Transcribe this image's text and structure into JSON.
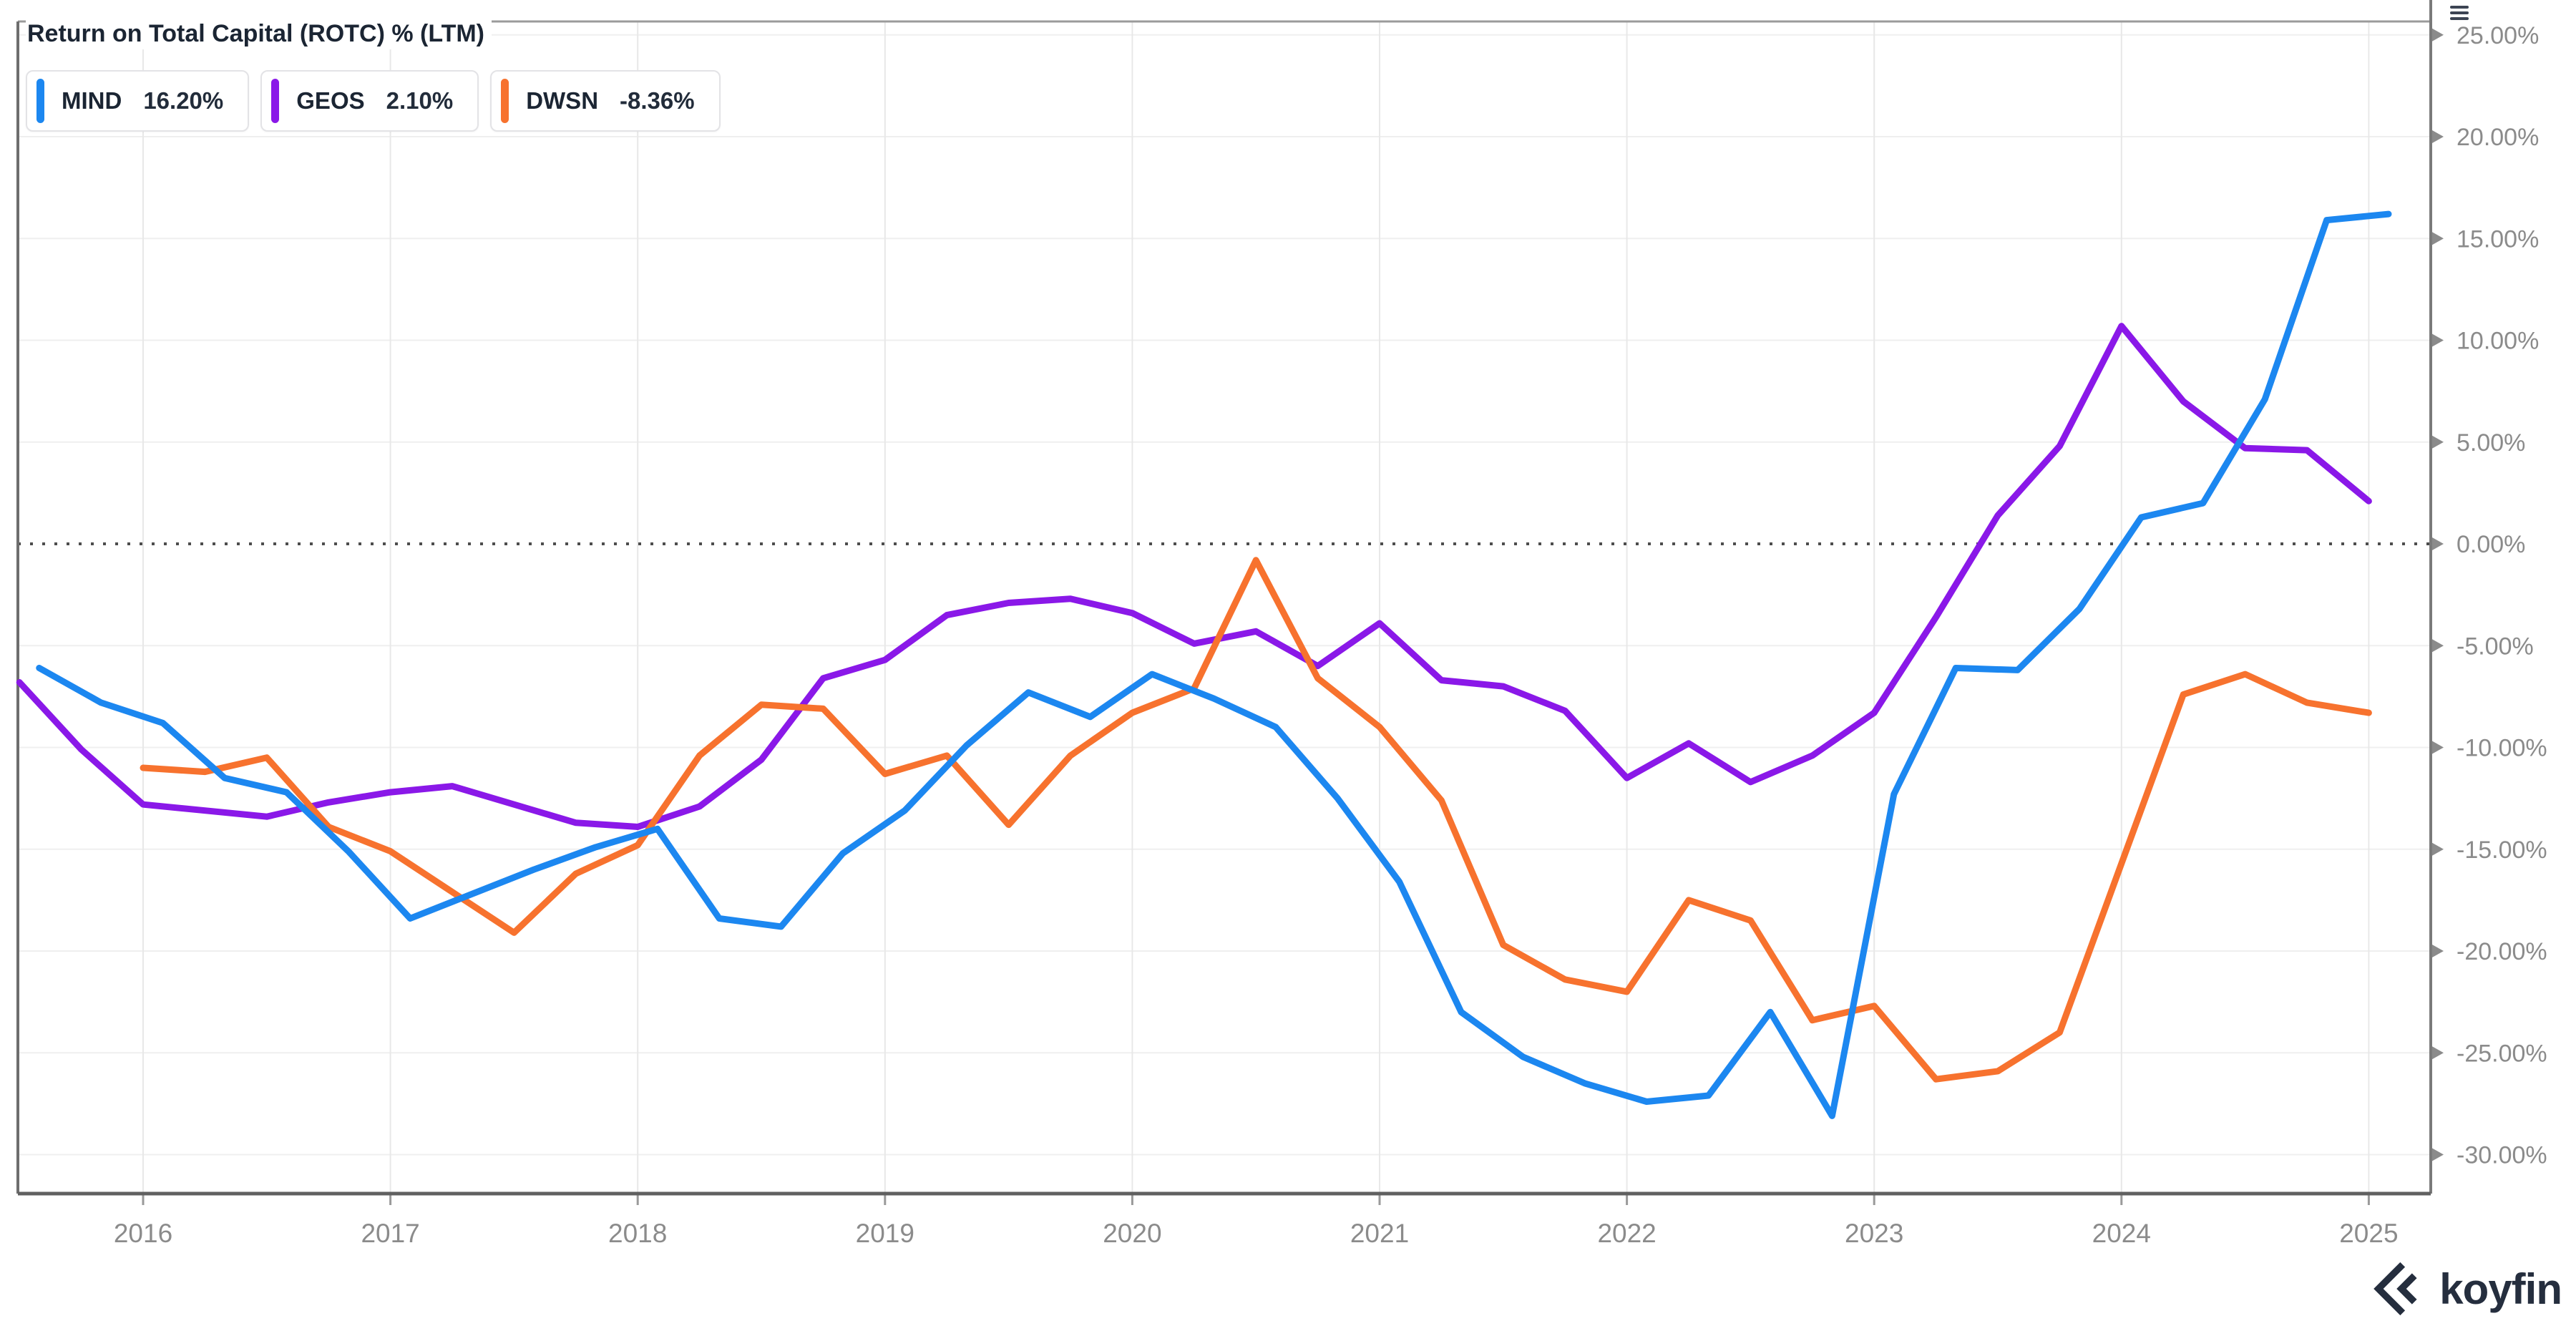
{
  "header": {
    "title": "Return on Total Capital (ROTC) % (LTM)"
  },
  "legend": {
    "items": [
      {
        "ticker": "MIND",
        "value": "16.20%",
        "color": "#1C87F0"
      },
      {
        "ticker": "GEOS",
        "value": "2.10%",
        "color": "#8A18E8"
      },
      {
        "ticker": "DWSN",
        "value": "-8.36%",
        "color": "#F7722E"
      }
    ]
  },
  "watermark": {
    "brand": "koyfin"
  },
  "chart_data": {
    "type": "line",
    "title": "Return on Total Capital (ROTC) % (LTM)",
    "xlabel": "",
    "ylabel": "",
    "xlim": [
      2015.45,
      2025.27
    ],
    "ylim": [
      -31.9,
      25.7
    ],
    "grid": true,
    "legend_position": "top-left",
    "y_axis_side": "right",
    "zero_line": {
      "value": 0,
      "style": "dotted",
      "color": "#4d4d4d"
    },
    "x_ticks": [
      {
        "label": "2016",
        "x": 2016
      },
      {
        "label": "2017",
        "x": 2017
      },
      {
        "label": "2018",
        "x": 2018
      },
      {
        "label": "2019",
        "x": 2019
      },
      {
        "label": "2020",
        "x": 2020
      },
      {
        "label": "2021",
        "x": 2021
      },
      {
        "label": "2022",
        "x": 2022
      },
      {
        "label": "2023",
        "x": 2023
      },
      {
        "label": "2024",
        "x": 2024
      },
      {
        "label": "2025",
        "x": 2025
      }
    ],
    "y_ticks": [
      {
        "label": "25.00%",
        "y": 25
      },
      {
        "label": "20.00%",
        "y": 20
      },
      {
        "label": "15.00%",
        "y": 15
      },
      {
        "label": "10.00%",
        "y": 10
      },
      {
        "label": "5.00%",
        "y": 5
      },
      {
        "label": "0.00%",
        "y": 0
      },
      {
        "label": "-5.00%",
        "y": -5
      },
      {
        "label": "-10.00%",
        "y": -10
      },
      {
        "label": "-15.00%",
        "y": -15
      },
      {
        "label": "-20.00%",
        "y": -20
      },
      {
        "label": "-25.00%",
        "y": -25
      },
      {
        "label": "-30.00%",
        "y": -30
      }
    ],
    "series": [
      {
        "name": "GEOS",
        "color": "#8A18E8",
        "current_value_pct": 2.1,
        "points": [
          [
            2015.5,
            -6.8
          ],
          [
            2015.75,
            -10.1
          ],
          [
            2016.0,
            -12.8
          ],
          [
            2016.25,
            -13.1
          ],
          [
            2016.5,
            -13.4
          ],
          [
            2016.75,
            -12.7
          ],
          [
            2017.0,
            -12.2
          ],
          [
            2017.25,
            -11.9
          ],
          [
            2017.5,
            -12.8
          ],
          [
            2017.75,
            -13.7
          ],
          [
            2018.0,
            -13.9
          ],
          [
            2018.25,
            -12.9
          ],
          [
            2018.5,
            -10.6
          ],
          [
            2018.75,
            -6.6
          ],
          [
            2019.0,
            -5.7
          ],
          [
            2019.25,
            -3.5
          ],
          [
            2019.5,
            -2.9
          ],
          [
            2019.75,
            -2.7
          ],
          [
            2020.0,
            -3.4
          ],
          [
            2020.25,
            -4.9
          ],
          [
            2020.5,
            -4.3
          ],
          [
            2020.75,
            -6.0
          ],
          [
            2021.0,
            -3.9
          ],
          [
            2021.25,
            -6.7
          ],
          [
            2021.5,
            -7.0
          ],
          [
            2021.75,
            -8.2
          ],
          [
            2022.0,
            -11.5
          ],
          [
            2022.25,
            -9.8
          ],
          [
            2022.5,
            -11.7
          ],
          [
            2022.75,
            -10.4
          ],
          [
            2023.0,
            -8.3
          ],
          [
            2023.25,
            -3.6
          ],
          [
            2023.5,
            1.4
          ],
          [
            2023.75,
            4.8
          ],
          [
            2024.0,
            10.7
          ],
          [
            2024.25,
            7.0
          ],
          [
            2024.5,
            4.7
          ],
          [
            2024.75,
            4.6
          ],
          [
            2025.0,
            2.1
          ]
        ]
      },
      {
        "name": "DWSN",
        "color": "#F7722E",
        "current_value_pct": -8.36,
        "points": [
          [
            2016.0,
            -11.0
          ],
          [
            2016.25,
            -11.2
          ],
          [
            2016.5,
            -10.5
          ],
          [
            2016.75,
            -13.9
          ],
          [
            2017.0,
            -15.1
          ],
          [
            2017.25,
            -17.1
          ],
          [
            2017.5,
            -19.1
          ],
          [
            2017.75,
            -16.2
          ],
          [
            2018.0,
            -14.8
          ],
          [
            2018.25,
            -10.4
          ],
          [
            2018.5,
            -7.9
          ],
          [
            2018.75,
            -8.1
          ],
          [
            2019.0,
            -11.3
          ],
          [
            2019.25,
            -10.4
          ],
          [
            2019.5,
            -13.8
          ],
          [
            2019.75,
            -10.4
          ],
          [
            2020.0,
            -8.3
          ],
          [
            2020.25,
            -7.1
          ],
          [
            2020.5,
            -0.8
          ],
          [
            2020.75,
            -6.6
          ],
          [
            2021.0,
            -9.0
          ],
          [
            2021.25,
            -12.6
          ],
          [
            2021.5,
            -19.7
          ],
          [
            2021.75,
            -21.4
          ],
          [
            2022.0,
            -22.0
          ],
          [
            2022.25,
            -17.5
          ],
          [
            2022.5,
            -18.5
          ],
          [
            2022.75,
            -23.4
          ],
          [
            2023.0,
            -22.7
          ],
          [
            2023.25,
            -26.3
          ],
          [
            2023.5,
            -25.9
          ],
          [
            2023.75,
            -24.0
          ],
          [
            2024.0,
            -15.7
          ],
          [
            2024.25,
            -7.4
          ],
          [
            2024.5,
            -6.4
          ],
          [
            2024.75,
            -7.8
          ],
          [
            2025.0,
            -8.3
          ]
        ]
      },
      {
        "name": "MIND",
        "color": "#1C87F0",
        "current_value_pct": 16.2,
        "points": [
          [
            2015.58,
            -6.1
          ],
          [
            2015.83,
            -7.8
          ],
          [
            2016.08,
            -8.8
          ],
          [
            2016.33,
            -11.5
          ],
          [
            2016.58,
            -12.2
          ],
          [
            2016.83,
            -15.1
          ],
          [
            2017.08,
            -18.4
          ],
          [
            2017.33,
            -17.2
          ],
          [
            2017.58,
            -16.0
          ],
          [
            2017.83,
            -14.9
          ],
          [
            2018.08,
            -14.0
          ],
          [
            2018.33,
            -18.4
          ],
          [
            2018.58,
            -18.8
          ],
          [
            2018.83,
            -15.2
          ],
          [
            2019.08,
            -13.1
          ],
          [
            2019.33,
            -9.9
          ],
          [
            2019.58,
            -7.3
          ],
          [
            2019.83,
            -8.5
          ],
          [
            2020.08,
            -6.4
          ],
          [
            2020.33,
            -7.6
          ],
          [
            2020.58,
            -9.0
          ],
          [
            2020.83,
            -12.5
          ],
          [
            2021.08,
            -16.6
          ],
          [
            2021.33,
            -23.0
          ],
          [
            2021.58,
            -25.2
          ],
          [
            2021.83,
            -26.5
          ],
          [
            2022.08,
            -27.4
          ],
          [
            2022.33,
            -27.1
          ],
          [
            2022.58,
            -23.0
          ],
          [
            2022.83,
            -28.1
          ],
          [
            2023.08,
            -12.3
          ],
          [
            2023.33,
            -6.1
          ],
          [
            2023.58,
            -6.2
          ],
          [
            2023.83,
            -3.2
          ],
          [
            2024.08,
            1.3
          ],
          [
            2024.33,
            2.0
          ],
          [
            2024.58,
            7.1
          ],
          [
            2024.83,
            15.9
          ],
          [
            2025.08,
            16.2
          ]
        ]
      }
    ]
  }
}
